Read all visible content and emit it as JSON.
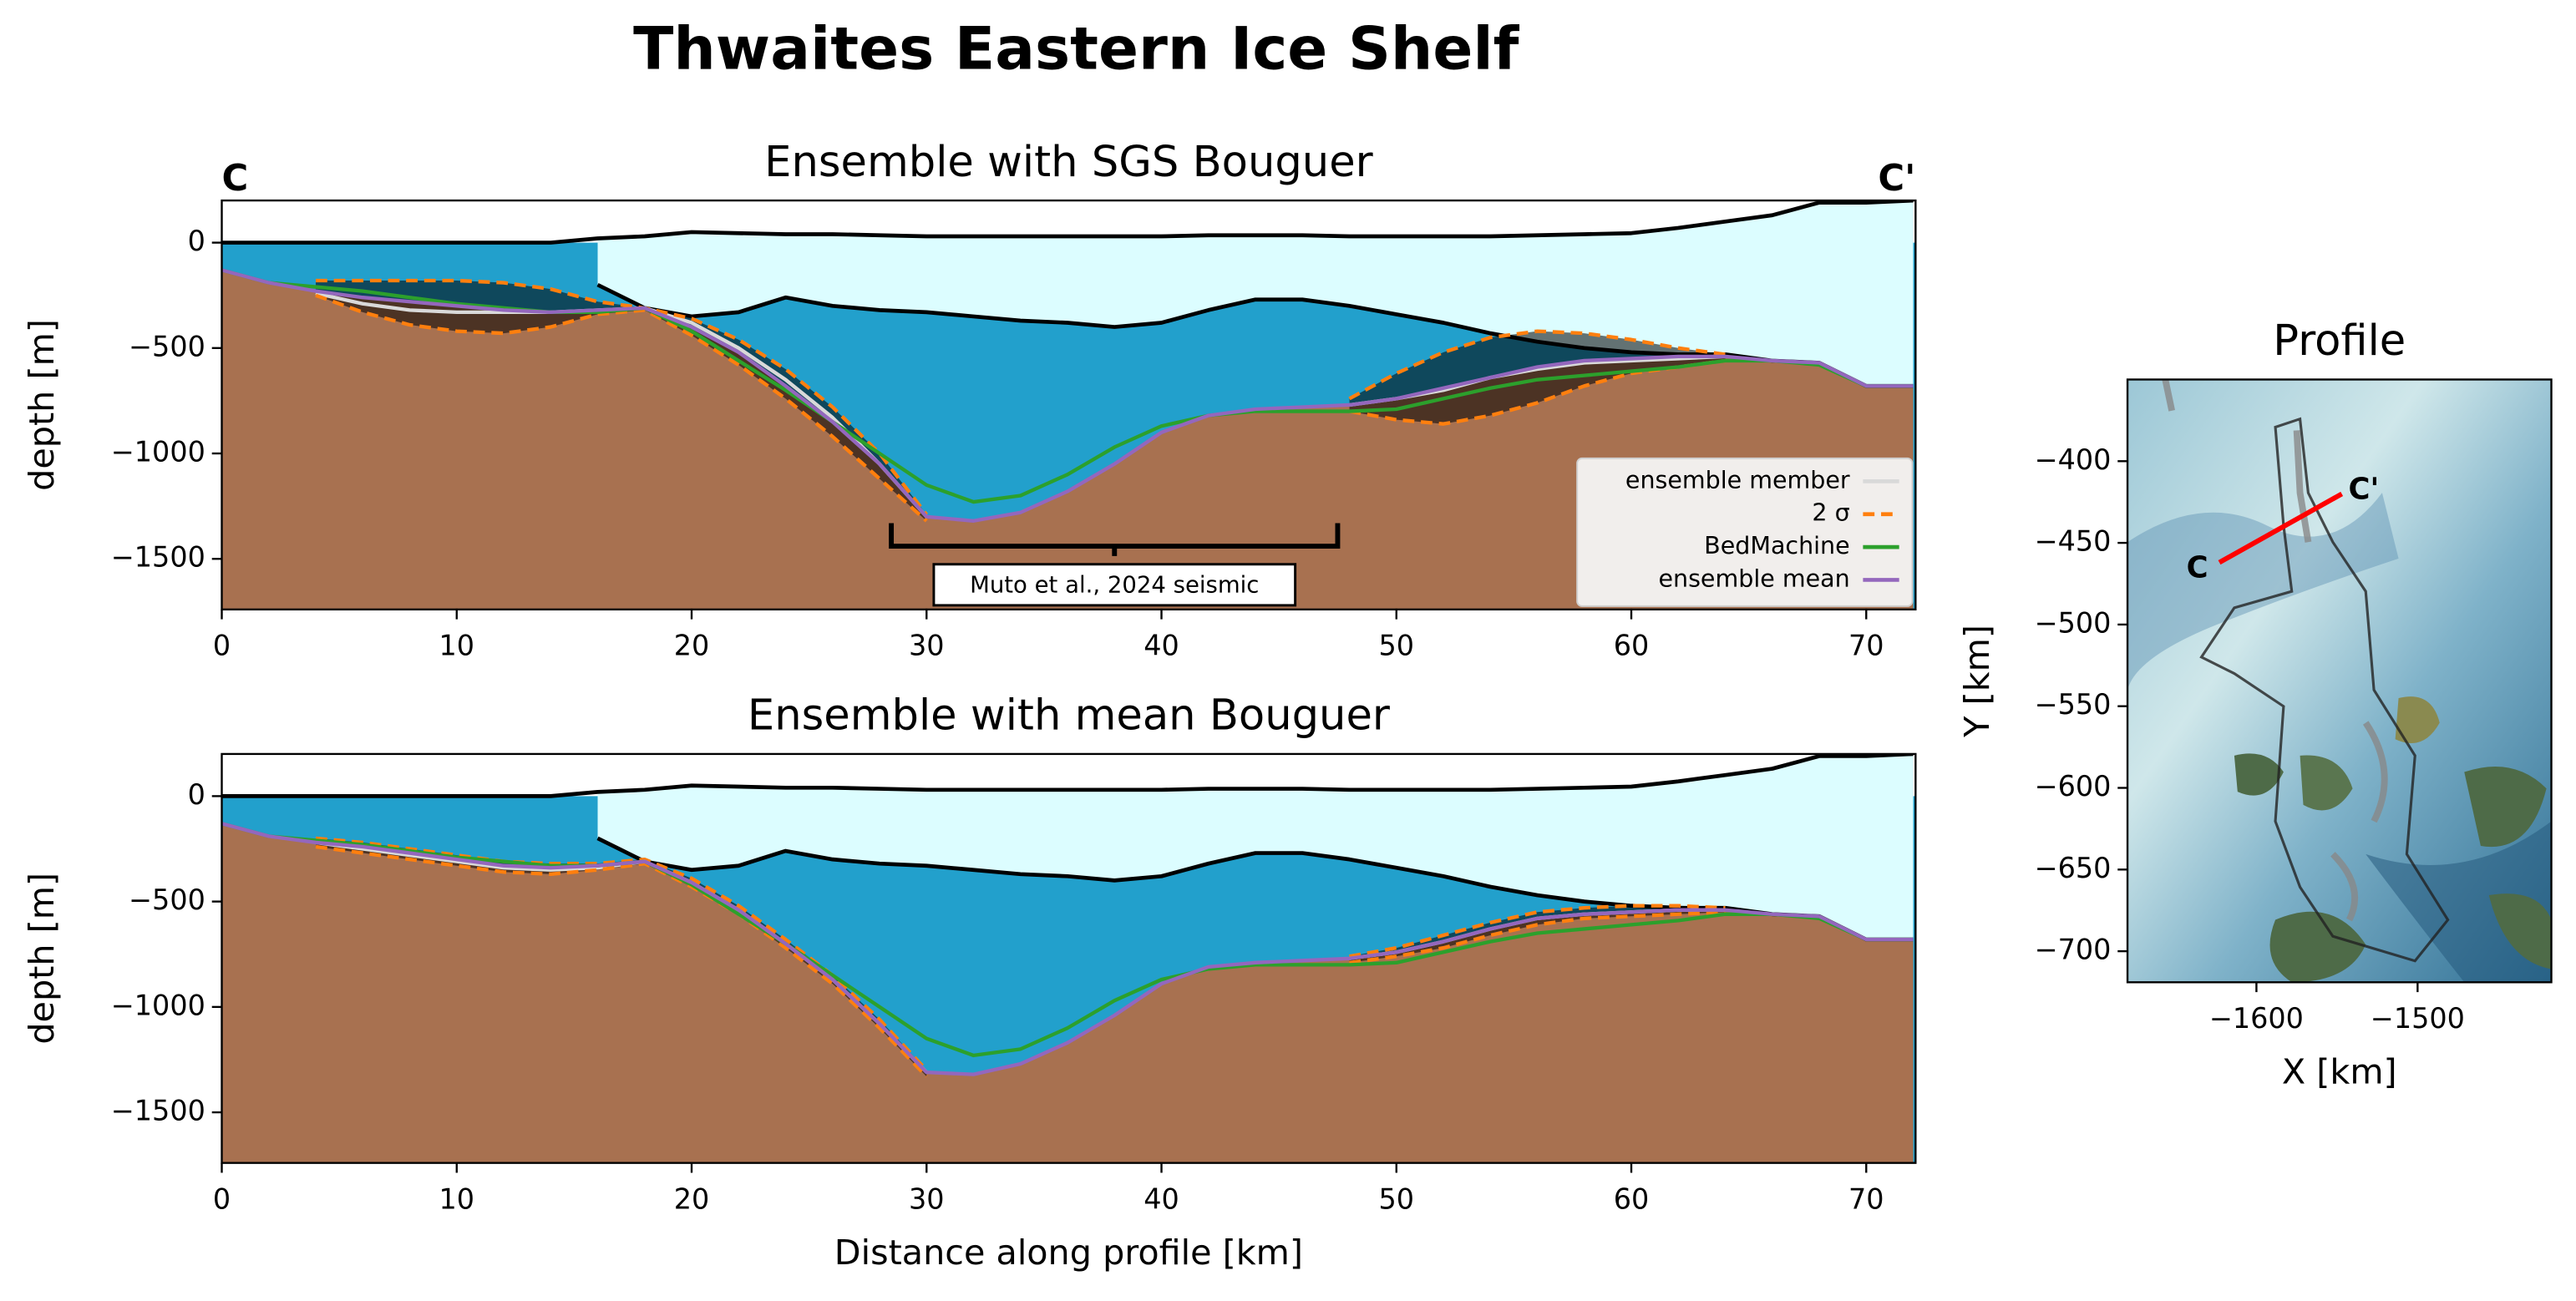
{
  "title": "Thwaites Eastern Ice Shelf",
  "chart_data": [
    {
      "type": "profile",
      "title": "Ensemble with SGS Bouguer",
      "ylabel": "depth [m]",
      "start_label": "C",
      "end_label": "C'",
      "x": [
        0,
        2,
        4,
        6,
        8,
        10,
        12,
        14,
        16,
        18,
        20,
        22,
        24,
        26,
        28,
        30,
        32,
        34,
        36,
        38,
        40,
        42,
        44,
        46,
        48,
        50,
        52,
        54,
        56,
        58,
        60,
        62,
        64,
        66,
        68,
        70,
        72
      ],
      "series": [
        {
          "color": "#000000",
          "values": [
            0,
            0,
            0,
            0,
            0,
            0,
            0,
            0,
            20,
            30,
            50,
            45,
            40,
            40,
            35,
            30,
            30,
            30,
            30,
            30,
            30,
            35,
            35,
            35,
            30,
            30,
            30,
            30,
            35,
            40,
            45,
            70,
            100,
            130,
            190,
            190,
            200
          ]
        },
        {
          "color": "#000000",
          "values": [
            null,
            null,
            null,
            null,
            null,
            null,
            null,
            null,
            -200,
            -310,
            -350,
            -330,
            -260,
            -300,
            -320,
            -330,
            -350,
            -370,
            -380,
            -400,
            -380,
            -320,
            -270,
            -270,
            -300,
            -340,
            -380,
            -430,
            -470,
            -500,
            -520,
            -530,
            -530,
            -560,
            -570,
            -680,
            -680
          ]
        },
        {
          "name": "ensemble member",
          "color": "#d9d9d9",
          "values": [
            null,
            null,
            -240,
            -290,
            -320,
            -330,
            -330,
            -330,
            -320,
            -310,
            -380,
            -500,
            -650,
            -830,
            -1050,
            -1300,
            null,
            null,
            null,
            null,
            null,
            null,
            null,
            null,
            -770,
            -740,
            -700,
            -640,
            -600,
            -570,
            -560,
            -550,
            -540,
            null,
            null,
            null,
            null
          ]
        },
        {
          "name": "2 σ",
          "color": "#ff7f0e",
          "linestyle": "dashed",
          "values": [
            null,
            null,
            -180,
            -180,
            -180,
            -180,
            -190,
            -220,
            -280,
            -310,
            -360,
            -460,
            -600,
            -780,
            -1000,
            -1290,
            null,
            null,
            null,
            null,
            null,
            null,
            null,
            null,
            -740,
            -620,
            -520,
            -450,
            -420,
            -430,
            -460,
            -500,
            -530,
            null,
            null,
            null,
            null
          ]
        },
        {
          "color": "#ff7f0e",
          "linestyle": "dashed",
          "values": [
            null,
            null,
            -250,
            -330,
            -390,
            -420,
            -430,
            -400,
            -340,
            -320,
            -440,
            -580,
            -740,
            -920,
            -1120,
            -1320,
            null,
            null,
            null,
            null,
            null,
            null,
            null,
            null,
            -800,
            -840,
            -860,
            -820,
            -760,
            -680,
            -620,
            -590,
            -560,
            null,
            null,
            null,
            null
          ]
        },
        {
          "name": "BedMachine",
          "color": "#2ca02c",
          "values": [
            -130,
            -190,
            -210,
            -230,
            -260,
            -290,
            -310,
            -330,
            -330,
            -310,
            -420,
            -560,
            -700,
            -850,
            -1000,
            -1150,
            -1230,
            -1200,
            -1100,
            -970,
            -870,
            -820,
            -800,
            -800,
            -800,
            -790,
            -740,
            -690,
            -650,
            -630,
            -610,
            -590,
            -560,
            -560,
            -580,
            -680,
            -680
          ]
        },
        {
          "name": "ensemble mean",
          "color": "#9467bd",
          "values": [
            -130,
            -190,
            -230,
            -260,
            -280,
            -300,
            -320,
            -330,
            -320,
            -310,
            -400,
            -520,
            -680,
            -850,
            -1050,
            -1300,
            -1320,
            -1280,
            -1180,
            -1050,
            -900,
            -820,
            -790,
            -780,
            -770,
            -740,
            -690,
            -640,
            -590,
            -560,
            -550,
            -540,
            -540,
            -560,
            -570,
            -680,
            -680
          ]
        }
      ],
      "water_color": "#22a0cc",
      "ice_color": "#dcfdff",
      "bed_color": "#a87150",
      "annotation": {
        "text": "Muto et al., 2024 seismic",
        "x": [
          28.5,
          47.5
        ],
        "y": -1440
      },
      "legend": "lower right",
      "xlim": [
        0,
        72.1
      ],
      "xticks": [
        0,
        10,
        20,
        30,
        40,
        50,
        60,
        70
      ],
      "ylim": [
        -1740,
        200
      ],
      "yticks": [
        0,
        {
          "value": -500,
          "label": "−500"
        },
        {
          "value": -1000,
          "label": "−1000"
        },
        {
          "value": -1500,
          "label": "−1500"
        }
      ]
    },
    {
      "type": "profile",
      "title": "Ensemble with mean Bouguer",
      "ylabel": "depth [m]",
      "xlabel": "Distance along profile [km]",
      "x": [
        0,
        2,
        4,
        6,
        8,
        10,
        12,
        14,
        16,
        18,
        20,
        22,
        24,
        26,
        28,
        30,
        32,
        34,
        36,
        38,
        40,
        42,
        44,
        46,
        48,
        50,
        52,
        54,
        56,
        58,
        60,
        62,
        64,
        66,
        68,
        70,
        72
      ],
      "series": [
        {
          "color": "#000000",
          "values": [
            0,
            0,
            0,
            0,
            0,
            0,
            0,
            0,
            20,
            30,
            50,
            45,
            40,
            40,
            35,
            30,
            30,
            30,
            30,
            30,
            30,
            35,
            35,
            35,
            30,
            30,
            30,
            30,
            35,
            40,
            45,
            70,
            100,
            130,
            190,
            190,
            200
          ]
        },
        {
          "color": "#000000",
          "values": [
            null,
            null,
            null,
            null,
            null,
            null,
            null,
            null,
            -200,
            -310,
            -350,
            -330,
            -260,
            -300,
            -320,
            -330,
            -350,
            -370,
            -380,
            -400,
            -380,
            -320,
            -270,
            -270,
            -300,
            -340,
            -380,
            -430,
            -470,
            -500,
            -520,
            -530,
            -530,
            -560,
            -570,
            -680,
            -680
          ]
        },
        {
          "color": "#d9d9d9",
          "values": [
            null,
            null,
            -220,
            -250,
            -280,
            -310,
            -340,
            -350,
            -340,
            -310,
            -410,
            -540,
            -700,
            -870,
            -1080,
            -1310,
            null,
            null,
            null,
            null,
            null,
            null,
            null,
            null,
            -770,
            -740,
            -690,
            -630,
            -580,
            -560,
            -550,
            -540,
            -540,
            null,
            null,
            null,
            null
          ]
        },
        {
          "color": "#ff7f0e",
          "linestyle": "dashed",
          "values": [
            null,
            null,
            -200,
            -220,
            -250,
            -280,
            -310,
            -320,
            -320,
            -300,
            -390,
            -520,
            -680,
            -850,
            -1060,
            -1300,
            null,
            null,
            null,
            null,
            null,
            null,
            null,
            null,
            -760,
            -720,
            -660,
            -600,
            -550,
            -530,
            -520,
            -520,
            -530,
            null,
            null,
            null,
            null
          ]
        },
        {
          "color": "#ff7f0e",
          "linestyle": "dashed",
          "values": [
            null,
            null,
            -240,
            -270,
            -300,
            -330,
            -360,
            -370,
            -350,
            -320,
            -430,
            -560,
            -720,
            -890,
            -1100,
            -1330,
            null,
            null,
            null,
            null,
            null,
            null,
            null,
            null,
            -790,
            -760,
            -720,
            -660,
            -610,
            -580,
            -570,
            -560,
            -550,
            null,
            null,
            null,
            null
          ]
        },
        {
          "color": "#2ca02c",
          "values": [
            -130,
            -190,
            -210,
            -230,
            -260,
            -290,
            -310,
            -330,
            -330,
            -310,
            -420,
            -560,
            -700,
            -850,
            -1000,
            -1150,
            -1230,
            -1200,
            -1100,
            -970,
            -870,
            -820,
            -800,
            -800,
            -800,
            -790,
            -740,
            -690,
            -650,
            -630,
            -610,
            -590,
            -560,
            -560,
            -580,
            -680,
            -680
          ]
        },
        {
          "color": "#9467bd",
          "values": [
            -130,
            -190,
            -220,
            -240,
            -270,
            -300,
            -330,
            -340,
            -330,
            -310,
            -410,
            -540,
            -700,
            -870,
            -1080,
            -1310,
            -1320,
            -1270,
            -1170,
            -1040,
            -890,
            -810,
            -790,
            -780,
            -770,
            -740,
            -690,
            -630,
            -580,
            -560,
            -550,
            -540,
            -540,
            -560,
            -570,
            -680,
            -680
          ]
        }
      ],
      "water_color": "#22a0cc",
      "ice_color": "#dcfdff",
      "bed_color": "#a87150",
      "xlim": [
        0,
        72.1
      ],
      "xticks": [
        0,
        10,
        20,
        30,
        40,
        50,
        60,
        70
      ],
      "ylim": [
        -1740,
        200
      ],
      "yticks": [
        0,
        {
          "value": -500,
          "label": "−500"
        },
        {
          "value": -1000,
          "label": "−1000"
        },
        {
          "value": -1500,
          "label": "−1500"
        }
      ]
    },
    {
      "type": "map",
      "title": "Profile",
      "xlabel": "X [km]",
      "ylabel": "Y [km]",
      "series": [
        {
          "color": "#ff0000",
          "x": [
            -1623,
            -1547
          ],
          "values": [
            -462,
            -420
          ],
          "point_labels": [
            "C",
            "C'"
          ]
        }
      ],
      "xlim": [
        -1680,
        -1417
      ],
      "xticks": [
        {
          "value": -1600,
          "label": "−1600"
        },
        {
          "value": -1500,
          "label": "−1500"
        }
      ],
      "ylim": [
        -719,
        -350
      ],
      "yticks": [
        {
          "value": -400,
          "label": "−400"
        },
        {
          "value": -450,
          "label": "−450"
        },
        {
          "value": -500,
          "label": "−500"
        },
        {
          "value": -550,
          "label": "−550"
        },
        {
          "value": -600,
          "label": "−600"
        },
        {
          "value": -650,
          "label": "−650"
        },
        {
          "value": -700,
          "label": "−700"
        }
      ]
    }
  ]
}
